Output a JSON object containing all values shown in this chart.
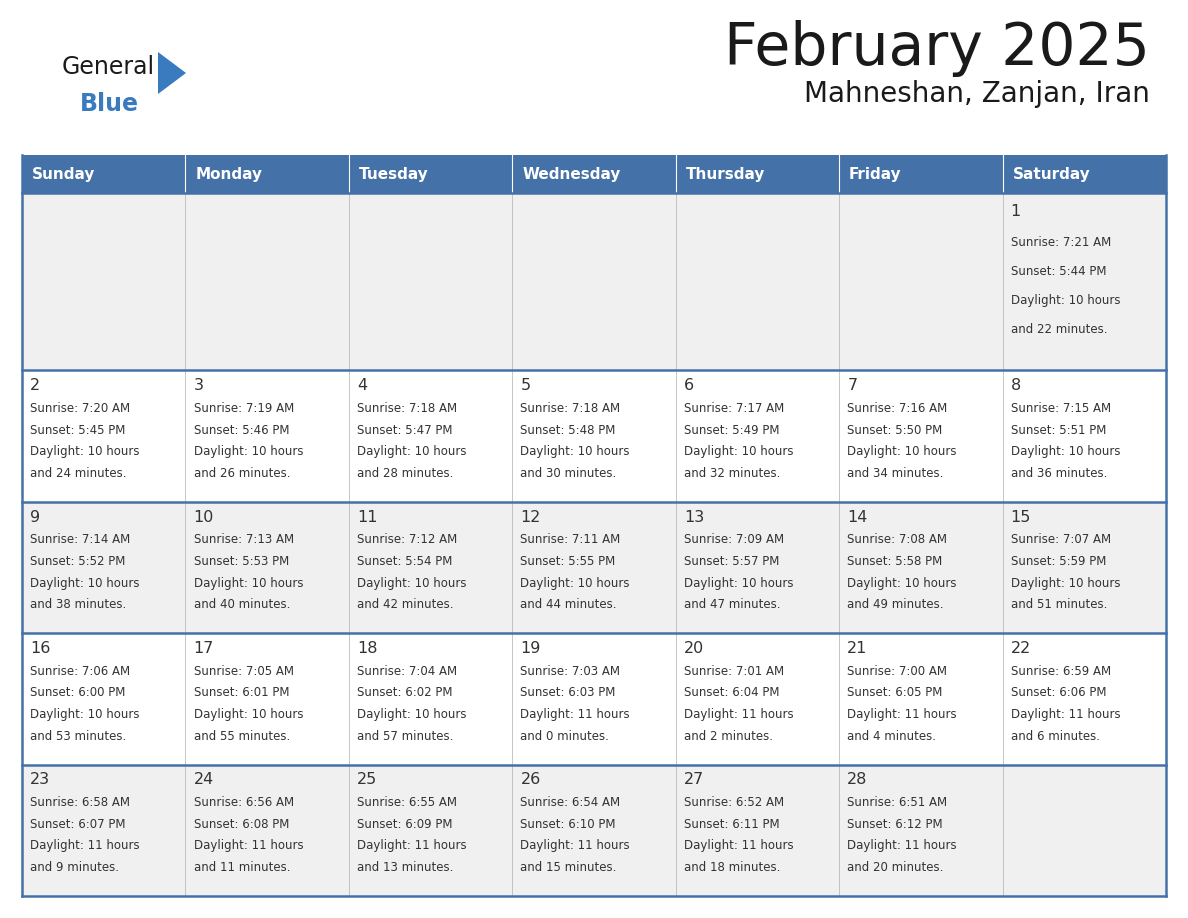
{
  "title": "February 2025",
  "subtitle": "Mahneshan, Zanjan, Iran",
  "days_of_week": [
    "Sunday",
    "Monday",
    "Tuesday",
    "Wednesday",
    "Thursday",
    "Friday",
    "Saturday"
  ],
  "header_bg": "#4472a8",
  "header_text": "#ffffff",
  "cell_bg_even_row": "#f0f0f0",
  "cell_bg_odd_row": "#ffffff",
  "line_color": "#4472a8",
  "title_color": "#1a1a1a",
  "cell_text_color": "#333333",
  "day_number_color": "#333333",
  "logo_general_color": "#1a1a1a",
  "logo_blue_color": "#3a7abf",
  "logo_triangle_color": "#3a7abf",
  "calendar_data": [
    [
      null,
      null,
      null,
      null,
      null,
      null,
      {
        "day": 1,
        "sunrise": "7:21 AM",
        "sunset": "5:44 PM",
        "daylight": "10 hours and 22 minutes."
      }
    ],
    [
      {
        "day": 2,
        "sunrise": "7:20 AM",
        "sunset": "5:45 PM",
        "daylight": "10 hours and 24 minutes."
      },
      {
        "day": 3,
        "sunrise": "7:19 AM",
        "sunset": "5:46 PM",
        "daylight": "10 hours and 26 minutes."
      },
      {
        "day": 4,
        "sunrise": "7:18 AM",
        "sunset": "5:47 PM",
        "daylight": "10 hours and 28 minutes."
      },
      {
        "day": 5,
        "sunrise": "7:18 AM",
        "sunset": "5:48 PM",
        "daylight": "10 hours and 30 minutes."
      },
      {
        "day": 6,
        "sunrise": "7:17 AM",
        "sunset": "5:49 PM",
        "daylight": "10 hours and 32 minutes."
      },
      {
        "day": 7,
        "sunrise": "7:16 AM",
        "sunset": "5:50 PM",
        "daylight": "10 hours and 34 minutes."
      },
      {
        "day": 8,
        "sunrise": "7:15 AM",
        "sunset": "5:51 PM",
        "daylight": "10 hours and 36 minutes."
      }
    ],
    [
      {
        "day": 9,
        "sunrise": "7:14 AM",
        "sunset": "5:52 PM",
        "daylight": "10 hours and 38 minutes."
      },
      {
        "day": 10,
        "sunrise": "7:13 AM",
        "sunset": "5:53 PM",
        "daylight": "10 hours and 40 minutes."
      },
      {
        "day": 11,
        "sunrise": "7:12 AM",
        "sunset": "5:54 PM",
        "daylight": "10 hours and 42 minutes."
      },
      {
        "day": 12,
        "sunrise": "7:11 AM",
        "sunset": "5:55 PM",
        "daylight": "10 hours and 44 minutes."
      },
      {
        "day": 13,
        "sunrise": "7:09 AM",
        "sunset": "5:57 PM",
        "daylight": "10 hours and 47 minutes."
      },
      {
        "day": 14,
        "sunrise": "7:08 AM",
        "sunset": "5:58 PM",
        "daylight": "10 hours and 49 minutes."
      },
      {
        "day": 15,
        "sunrise": "7:07 AM",
        "sunset": "5:59 PM",
        "daylight": "10 hours and 51 minutes."
      }
    ],
    [
      {
        "day": 16,
        "sunrise": "7:06 AM",
        "sunset": "6:00 PM",
        "daylight": "10 hours and 53 minutes."
      },
      {
        "day": 17,
        "sunrise": "7:05 AM",
        "sunset": "6:01 PM",
        "daylight": "10 hours and 55 minutes."
      },
      {
        "day": 18,
        "sunrise": "7:04 AM",
        "sunset": "6:02 PM",
        "daylight": "10 hours and 57 minutes."
      },
      {
        "day": 19,
        "sunrise": "7:03 AM",
        "sunset": "6:03 PM",
        "daylight": "11 hours and 0 minutes."
      },
      {
        "day": 20,
        "sunrise": "7:01 AM",
        "sunset": "6:04 PM",
        "daylight": "11 hours and 2 minutes."
      },
      {
        "day": 21,
        "sunrise": "7:00 AM",
        "sunset": "6:05 PM",
        "daylight": "11 hours and 4 minutes."
      },
      {
        "day": 22,
        "sunrise": "6:59 AM",
        "sunset": "6:06 PM",
        "daylight": "11 hours and 6 minutes."
      }
    ],
    [
      {
        "day": 23,
        "sunrise": "6:58 AM",
        "sunset": "6:07 PM",
        "daylight": "11 hours and 9 minutes."
      },
      {
        "day": 24,
        "sunrise": "6:56 AM",
        "sunset": "6:08 PM",
        "daylight": "11 hours and 11 minutes."
      },
      {
        "day": 25,
        "sunrise": "6:55 AM",
        "sunset": "6:09 PM",
        "daylight": "11 hours and 13 minutes."
      },
      {
        "day": 26,
        "sunrise": "6:54 AM",
        "sunset": "6:10 PM",
        "daylight": "11 hours and 15 minutes."
      },
      {
        "day": 27,
        "sunrise": "6:52 AM",
        "sunset": "6:11 PM",
        "daylight": "11 hours and 18 minutes."
      },
      {
        "day": 28,
        "sunrise": "6:51 AM",
        "sunset": "6:12 PM",
        "daylight": "11 hours and 20 minutes."
      },
      null
    ]
  ]
}
